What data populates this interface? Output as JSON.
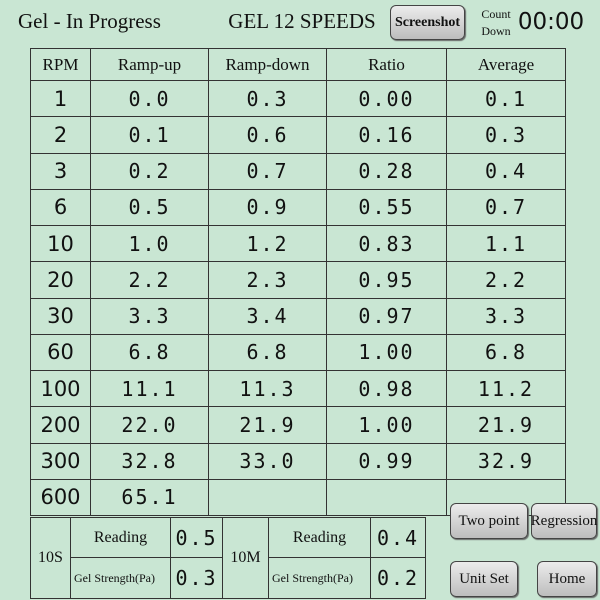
{
  "header": {
    "title": "Gel - In Progress",
    "mode": "GEL 12 SPEEDS",
    "screenshot_button": "Screenshot",
    "countdown_label": "Count Down",
    "countdown": "00:00"
  },
  "table": {
    "columns": [
      "RPM",
      "Ramp-up",
      "Ramp-down",
      "Ratio",
      "Average"
    ],
    "rows": [
      [
        "1",
        "0.0",
        "0.3",
        "0.00",
        "0.1"
      ],
      [
        "2",
        "0.1",
        "0.6",
        "0.16",
        "0.3"
      ],
      [
        "3",
        "0.2",
        "0.7",
        "0.28",
        "0.4"
      ],
      [
        "6",
        "0.5",
        "0.9",
        "0.55",
        "0.7"
      ],
      [
        "10",
        "1.0",
        "1.2",
        "0.83",
        "1.1"
      ],
      [
        "20",
        "2.2",
        "2.3",
        "0.95",
        "2.2"
      ],
      [
        "30",
        "3.3",
        "3.4",
        "0.97",
        "3.3"
      ],
      [
        "60",
        "6.8",
        "6.8",
        "1.00",
        "6.8"
      ],
      [
        "100",
        "11.1",
        "11.3",
        "0.98",
        "11.2"
      ],
      [
        "200",
        "22.0",
        "21.9",
        "1.00",
        "21.9"
      ],
      [
        "300",
        "32.8",
        "33.0",
        "0.99",
        "32.9"
      ],
      [
        "600",
        "65.1"
      ]
    ]
  },
  "gel_strength": [
    {
      "time": "10S",
      "reading_label": "Reading",
      "reading": "0.5",
      "strength_label": "Gel Strength(Pa)",
      "strength": "0.3"
    },
    {
      "time": "10M",
      "reading_label": "Reading",
      "reading": "0.4",
      "strength_label": "Gel Strength(Pa)",
      "strength": "0.2"
    }
  ],
  "buttons": [
    "Two point",
    "Regression",
    "Unit Set",
    "Home"
  ]
}
